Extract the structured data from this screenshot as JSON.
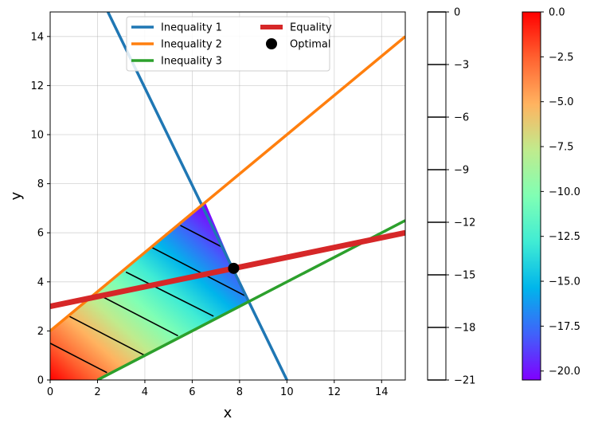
{
  "chart_data": {
    "type": "line",
    "xlabel": "x",
    "ylabel": "y",
    "xlim": [
      0,
      15
    ],
    "ylim": [
      0,
      15
    ],
    "grid": true,
    "xticks": [
      0,
      2,
      4,
      6,
      8,
      10,
      12,
      14
    ],
    "yticks": [
      0,
      2,
      4,
      6,
      8,
      10,
      12,
      14
    ],
    "legend_position": "top-center",
    "legend_columns": 2,
    "series": [
      {
        "name": "Inequality 1",
        "color": "#1f77b4",
        "x": [
          2.44,
          10.0
        ],
        "y": [
          15.0,
          0.0
        ]
      },
      {
        "name": "Inequality 2",
        "color": "#ff7f0e",
        "x": [
          0.0,
          15.0
        ],
        "y": [
          2.0,
          14.0
        ]
      },
      {
        "name": "Inequality 3",
        "color": "#2ca02c",
        "x": [
          2.0,
          15.0
        ],
        "y": [
          0.0,
          6.5
        ]
      },
      {
        "name": "Equality",
        "color": "#d62728",
        "x": [
          0.0,
          15.0
        ],
        "y": [
          3.0,
          6.0
        ]
      },
      {
        "name": "Optimal",
        "color": "#000000",
        "marker": "circle",
        "x": [
          7.75
        ],
        "y": [
          4.55
        ]
      }
    ],
    "feasible_region": {
      "vertices": [
        [
          0,
          0
        ],
        [
          2,
          0
        ],
        [
          8.35,
          3.18
        ],
        [
          6.55,
          7.24
        ],
        [
          0,
          2
        ]
      ],
      "objective_range": [
        -20.5,
        0
      ],
      "colormap": "rainbow"
    },
    "objective_contours": [
      {
        "x": [
          0.0,
          2.4
        ],
        "y": [
          1.5,
          0.3
        ]
      },
      {
        "x": [
          0.8,
          4.0
        ],
        "y": [
          2.6,
          1.0
        ]
      },
      {
        "x": [
          2.0,
          5.4
        ],
        "y": [
          3.5,
          1.8
        ]
      },
      {
        "x": [
          3.2,
          6.9
        ],
        "y": [
          4.4,
          2.6
        ]
      },
      {
        "x": [
          4.3,
          8.3
        ],
        "y": [
          5.4,
          3.4
        ]
      },
      {
        "x": [
          5.5,
          7.3
        ],
        "y": [
          6.3,
          5.4
        ]
      }
    ],
    "colorbars": [
      {
        "name": "contour-levels",
        "ticks": [
          0,
          -3,
          -6,
          -9,
          -12,
          -15,
          -18,
          -21
        ],
        "range": [
          -21,
          0
        ]
      },
      {
        "name": "objective",
        "colormap": "rainbow",
        "ticks": [
          0.0,
          -2.5,
          -5.0,
          -7.5,
          -10.0,
          -12.5,
          -15.0,
          -17.5,
          -20.0
        ],
        "range": [
          -20.5,
          0
        ]
      }
    ]
  }
}
